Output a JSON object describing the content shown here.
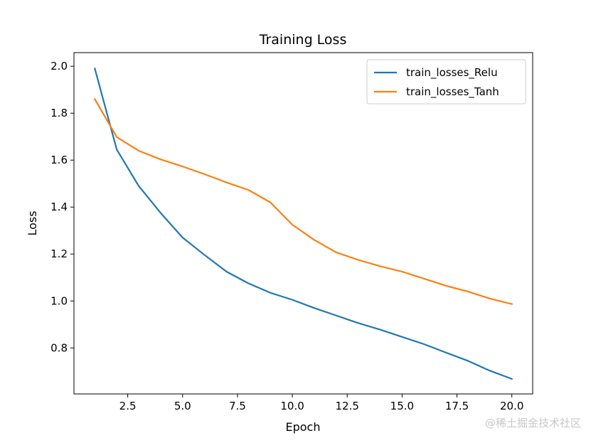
{
  "chart_data": {
    "type": "line",
    "title": "Training Loss",
    "xlabel": "Epoch",
    "ylabel": "Loss",
    "xlim": [
      0.05,
      20.95
    ],
    "ylim": [
      0.604,
      2.058
    ],
    "xticks": [
      2.5,
      5.0,
      7.5,
      10.0,
      12.5,
      15.0,
      17.5,
      20.0
    ],
    "xtick_labels": [
      "2.5",
      "5.0",
      "7.5",
      "10.0",
      "12.5",
      "15.0",
      "17.5",
      "20.0"
    ],
    "yticks": [
      0.8,
      1.0,
      1.2,
      1.4,
      1.6,
      1.8,
      2.0
    ],
    "ytick_labels": [
      "0.8",
      "1.0",
      "1.2",
      "1.4",
      "1.6",
      "1.8",
      "2.0"
    ],
    "grid": false,
    "legend_position": "top-right",
    "x": [
      1,
      2,
      3,
      4,
      5,
      6,
      7,
      8,
      9,
      10,
      11,
      12,
      13,
      14,
      15,
      16,
      17,
      18,
      19,
      20
    ],
    "series": [
      {
        "name": "train_losses_Relu",
        "color": "#1f77b4",
        "values": [
          1.99,
          1.645,
          1.49,
          1.375,
          1.27,
          1.196,
          1.125,
          1.075,
          1.035,
          1.005,
          0.97,
          0.938,
          0.906,
          0.878,
          0.847,
          0.816,
          0.78,
          0.745,
          0.703,
          0.668
        ]
      },
      {
        "name": "train_losses_Tanh",
        "color": "#ff7f0e",
        "values": [
          1.86,
          1.698,
          1.64,
          1.603,
          1.573,
          1.54,
          1.505,
          1.473,
          1.42,
          1.325,
          1.26,
          1.207,
          1.175,
          1.148,
          1.125,
          1.095,
          1.065,
          1.04,
          1.01,
          0.987
        ]
      }
    ]
  },
  "watermark": "@稀土掘金技术社区"
}
